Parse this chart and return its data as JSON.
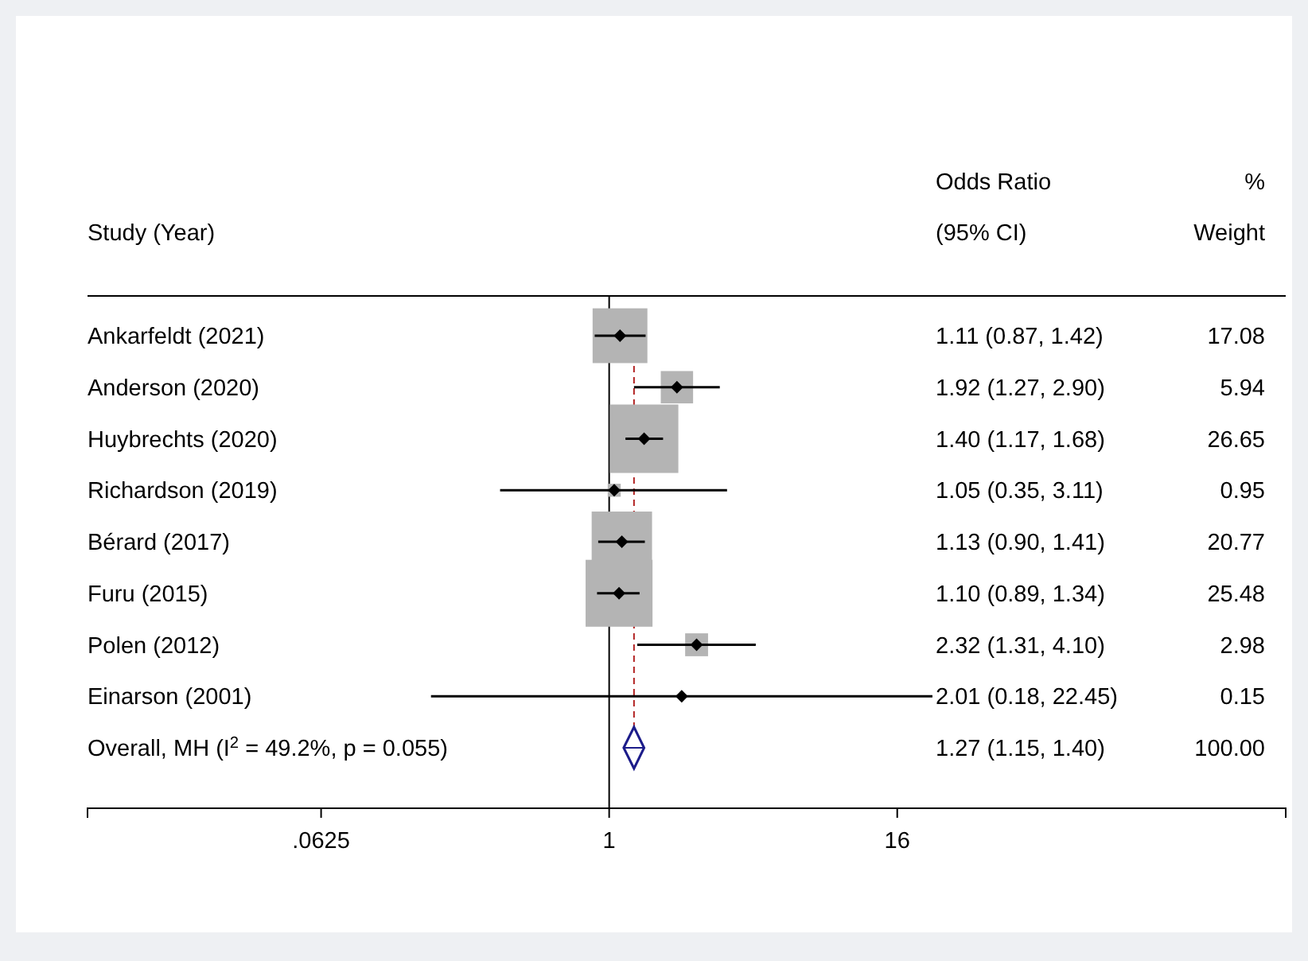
{
  "chart_data": {
    "type": "scatter",
    "orientation": "horizontal",
    "ylabel": "Study (Year)",
    "annotations": [
      "Odds Ratio",
      "(95% CI)",
      "%",
      "Weight",
      "1.11 (0.87, 1.42)",
      "1.92 (1.27, 2.90)",
      "1.40 (1.17, 1.68)",
      "1.05 (0.35, 3.11)",
      "1.13 (0.90, 1.41)",
      "1.10 (0.89, 1.34)",
      "2.32 (1.31, 4.10)",
      "2.01 (0.18, 22.45)",
      "1.27 (1.15, 1.40)",
      "17.08",
      "5.94",
      "26.65",
      "0.95",
      "20.77",
      "25.48",
      "2.98",
      "0.15",
      "100.00"
    ],
    "categories": [
      "Ankarfeldt (2021)",
      "Anderson (2020)",
      "Huybrechts (2020)",
      "Richardson (2019)",
      "Bérard (2017)",
      "Furu (2015)",
      "Polen (2012)",
      "Einarson (2001)",
      "Overall, MH (I$^{2}$ = 49.2%, p = 0.055)"
    ],
    "series": [
      {
        "type": "bubble",
        "marker": "square",
        "color": "#b4b4b4",
        "values": [
          1.11,
          1.92,
          1.4,
          1.05,
          1.13,
          1.1,
          2.32,
          null,
          null
        ],
        "sizes": [
          0.641,
          0.223,
          1,
          0.036,
          0.779,
          0.956,
          0.112,
          null,
          null
        ]
      },
      {
        "marker": "diamond",
        "color": "#000000",
        "values": [
          1.11,
          1.92,
          1.4,
          1.05,
          1.13,
          1.1,
          2.32,
          2.01,
          null
        ],
        "errors": [
          [
            0.87,
            1.42
          ],
          [
            1.27,
            2.9
          ],
          [
            1.17,
            1.68
          ],
          [
            0.35,
            3.11
          ],
          [
            0.9,
            1.41
          ],
          [
            0.89,
            1.34
          ],
          [
            1.31,
            4.1
          ],
          [
            0.18,
            22.45
          ],
          null
        ]
      },
      {
        "marker": "diamond",
        "color": "#1c1c8a",
        "values": [
          null,
          null,
          null,
          null,
          null,
          null,
          null,
          null,
          1.27
        ],
        "errors": [
          null,
          null,
          null,
          null,
          null,
          null,
          null,
          null,
          [
            1.15,
            1.4
          ]
        ]
      }
    ],
    "log": "x",
    "xlim": [
      0.0066,
      673
    ],
    "xticks": [
      {
        "value": 0.0625,
        "label": ".0625"
      },
      1,
      16
    ],
    "ref_lines": [
      {
        "axis": "x",
        "value": 1,
        "color": "#000000",
        "line_style": "solid"
      },
      {
        "axis": "x",
        "value": 1.27,
        "color": "#b22222",
        "line_style": "dashed"
      }
    ]
  }
}
